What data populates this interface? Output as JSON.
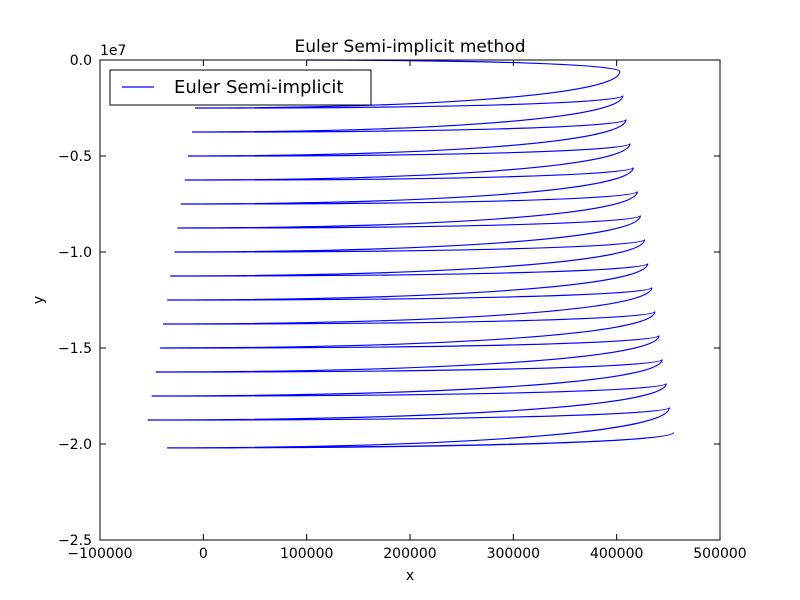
{
  "chart_data": {
    "type": "line",
    "title": "Euler Semi-implicit method",
    "xlabel": "x",
    "ylabel": "y",
    "y_offset_text": "1e7",
    "xlim": [
      -100000,
      500000
    ],
    "ylim": [
      -2.5,
      0.0
    ],
    "y_scale_note": "y values in units of 1e7",
    "xticks": [
      -100000,
      0,
      100000,
      200000,
      300000,
      400000,
      500000
    ],
    "xtick_labels": [
      "−100000",
      "0",
      "100000",
      "200000",
      "300000",
      "400000",
      "500000"
    ],
    "yticks": [
      0.0,
      -0.5,
      -1.0,
      -1.5,
      -2.0,
      -2.5
    ],
    "ytick_labels": [
      "0.0",
      "−0.5",
      "−1.0",
      "−1.5",
      "−2.0",
      "−2.5"
    ],
    "legend": {
      "location": "upper left",
      "entries": [
        "Euler Semi-implicit"
      ]
    },
    "grid": false,
    "series": [
      {
        "name": "Euler Semi-implicit",
        "color": "#0000ff",
        "left_extremes": [
          {
            "x": -8000,
            "y": -0.25
          },
          {
            "x": -11000,
            "y": -0.375
          },
          {
            "x": -15000,
            "y": -0.5
          },
          {
            "x": -18000,
            "y": -0.625
          },
          {
            "x": -22000,
            "y": -0.75
          },
          {
            "x": -25000,
            "y": -0.875
          },
          {
            "x": -28000,
            "y": -1.0
          },
          {
            "x": -32000,
            "y": -1.125
          },
          {
            "x": -35000,
            "y": -1.25
          },
          {
            "x": -39000,
            "y": -1.375
          },
          {
            "x": -42000,
            "y": -1.5
          },
          {
            "x": -46000,
            "y": -1.625
          },
          {
            "x": -50000,
            "y": -1.75
          },
          {
            "x": -54000,
            "y": -1.875
          }
        ],
        "right_extremes": [
          {
            "x": 403000,
            "y": -0.06
          },
          {
            "x": 406000,
            "y": -0.185
          },
          {
            "x": 409000,
            "y": -0.31
          },
          {
            "x": 413000,
            "y": -0.435
          },
          {
            "x": 416000,
            "y": -0.56
          },
          {
            "x": 420000,
            "y": -0.685
          },
          {
            "x": 423000,
            "y": -0.81
          },
          {
            "x": 427000,
            "y": -0.935
          },
          {
            "x": 430000,
            "y": -1.06
          },
          {
            "x": 434000,
            "y": -1.185
          },
          {
            "x": 437000,
            "y": -1.31
          },
          {
            "x": 441000,
            "y": -1.435
          },
          {
            "x": 444000,
            "y": -1.56
          },
          {
            "x": 448000,
            "y": -1.685
          },
          {
            "x": 451000,
            "y": -1.81
          },
          {
            "x": 455000,
            "y": -1.94
          }
        ],
        "start": {
          "x": 100000,
          "y": 0.0
        },
        "end": {
          "x": -35000,
          "y": -2.02
        }
      }
    ]
  }
}
